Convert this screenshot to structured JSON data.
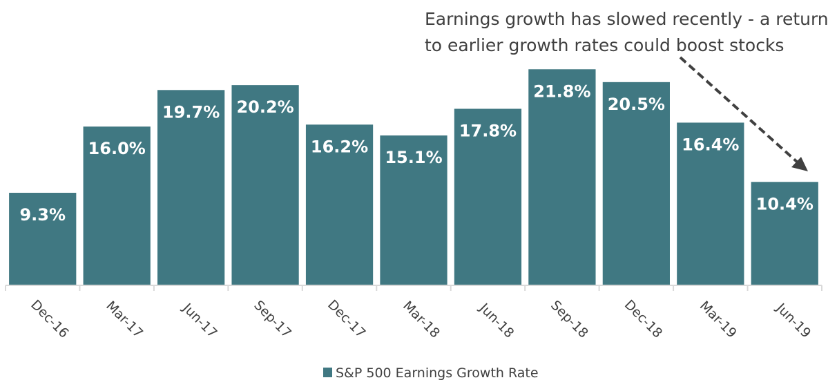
{
  "chart_data": {
    "type": "bar",
    "title": "",
    "xlabel": "",
    "ylabel": "",
    "ylim": [
      0,
      22
    ],
    "grid": false,
    "categories": [
      "Dec-16",
      "Mar-17",
      "Jun-17",
      "Sep-17",
      "Dec-17",
      "Mar-18",
      "Jun-18",
      "Sep-18",
      "Dec-18",
      "Mar-19",
      "Jun-19"
    ],
    "series": [
      {
        "name": "S&P 500 Earnings Growth Rate",
        "values": [
          9.3,
          16.0,
          19.7,
          20.2,
          16.2,
          15.1,
          17.8,
          21.8,
          20.5,
          16.4,
          10.4
        ],
        "labels": [
          "9.3%",
          "16.0%",
          "19.7%",
          "20.2%",
          "16.2%",
          "15.1%",
          "17.8%",
          "21.8%",
          "20.5%",
          "16.4%",
          "10.4%"
        ],
        "color": "#407882"
      }
    ],
    "legend": {
      "position": "bottom-center",
      "entries": [
        "S&P 500 Earnings Growth Rate"
      ]
    },
    "annotations": [
      {
        "lines": [
          "Earnings growth has slowed recently -  a return",
          "to earlier growth rates could boost stocks"
        ],
        "position": "top-right",
        "arrow": {
          "style": "dashed",
          "points_to": "Jun-19"
        }
      }
    ]
  }
}
